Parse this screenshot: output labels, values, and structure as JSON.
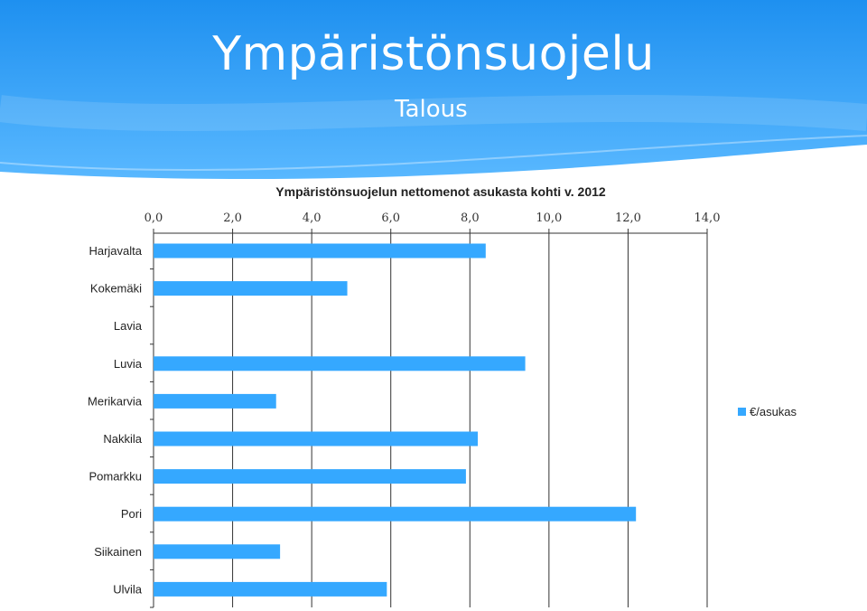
{
  "slide": {
    "title": "Ympäristönsuojelu",
    "subtitle": "Talous"
  },
  "colors": {
    "header_top": "#1e90f0",
    "header_bottom": "#59b8ff",
    "bar": "#35a8ff",
    "grid": "#333333"
  },
  "chart_data": {
    "type": "bar",
    "orientation": "horizontal",
    "title": "Ympäristönsuojelun nettomenot asukasta kohti v. 2012",
    "categories": [
      "Harjavalta",
      "Kokemäki",
      "Lavia",
      "Luvia",
      "Merikarvia",
      "Nakkila",
      "Pomarkku",
      "Pori",
      "Siikainen",
      "Ulvila"
    ],
    "series": [
      {
        "name": "€/asukas",
        "values": [
          8.4,
          4.9,
          0,
          9.4,
          3.1,
          8.2,
          7.9,
          12.2,
          3.2,
          5.9
        ]
      }
    ],
    "xlim": [
      0,
      14
    ],
    "xticks": [
      "0,0",
      "2,0",
      "4,0",
      "6,0",
      "8,0",
      "10,0",
      "12,0",
      "14,0"
    ],
    "x_axis_position": "top",
    "grid": true,
    "legend": "right"
  }
}
